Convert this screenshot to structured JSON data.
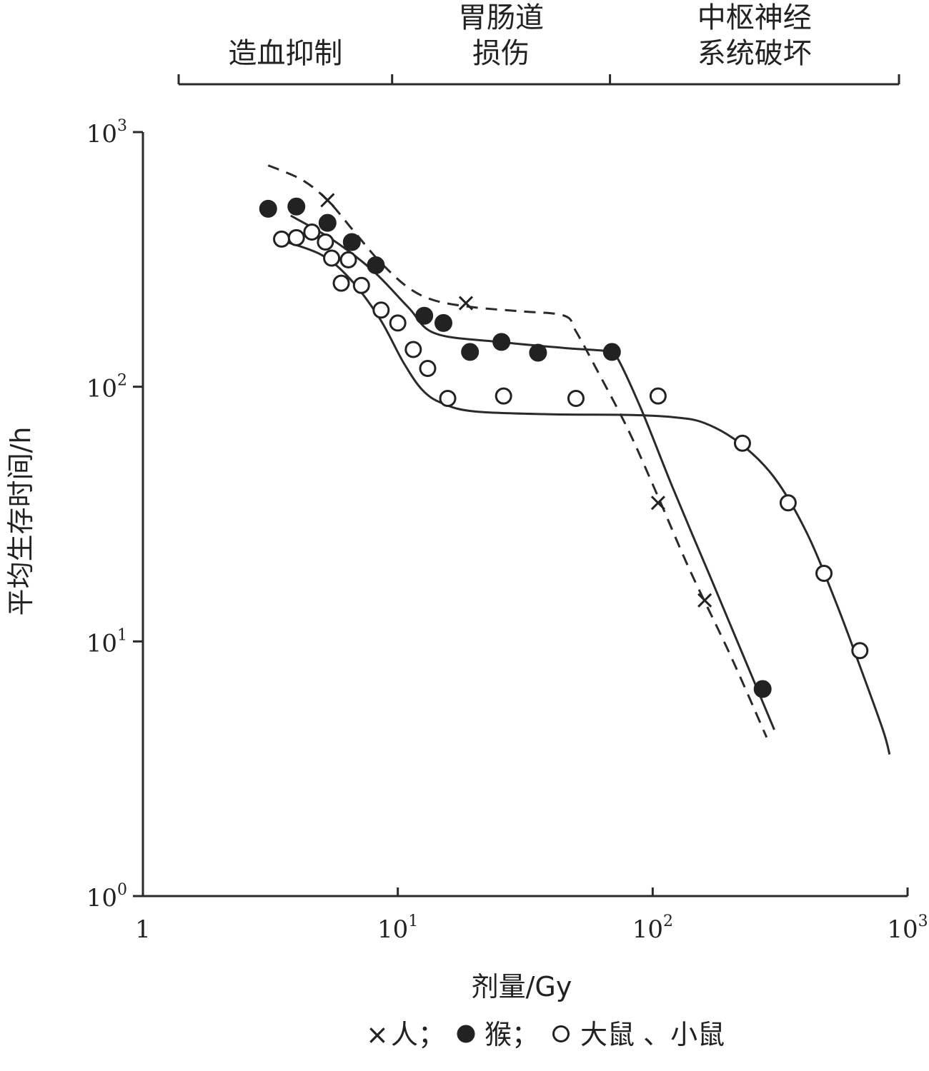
{
  "chart_data": {
    "type": "scatter",
    "xscale": "log",
    "yscale": "log",
    "xlim": [
      1,
      1000
    ],
    "ylim": [
      1,
      1000
    ],
    "xlabel": "剂量/Gy",
    "ylabel": "平均生存时间/h",
    "x_ticks": [
      {
        "base": "1",
        "exp": ""
      },
      {
        "base": "10",
        "exp": "1"
      },
      {
        "base": "10",
        "exp": "2"
      },
      {
        "base": "10",
        "exp": "3"
      }
    ],
    "y_ticks": [
      {
        "base": "10",
        "exp": "0"
      },
      {
        "base": "10",
        "exp": "1"
      },
      {
        "base": "10",
        "exp": "2"
      },
      {
        "base": "10",
        "exp": "3"
      }
    ],
    "phases": [
      {
        "lines": [
          "造血抑制"
        ],
        "range": [
          1.4,
          9.5
        ]
      },
      {
        "lines": [
          "胃肠道",
          "损伤"
        ],
        "range": [
          9.5,
          68
        ]
      },
      {
        "lines": [
          "中枢神经",
          "系统破坏"
        ],
        "range": [
          68,
          1000
        ]
      }
    ],
    "legend": {
      "human": "人；",
      "monkey": "猴；",
      "rodent": "大鼠 、小鼠",
      "human_symbol": "×"
    },
    "series": [
      {
        "key": "human",
        "marker": "x",
        "curve_style": "dashed",
        "points": [
          [
            5.3,
            540
          ],
          [
            18.5,
            213
          ],
          [
            105,
            35
          ],
          [
            160,
            14.5
          ]
        ],
        "curve": [
          [
            3.1,
            740
          ],
          [
            4.2,
            650
          ],
          [
            5.3,
            540
          ],
          [
            6.7,
            410
          ],
          [
            8.5,
            310
          ],
          [
            11,
            245
          ],
          [
            14,
            218
          ],
          [
            20,
            205
          ],
          [
            30,
            198
          ],
          [
            45,
            190
          ],
          [
            50,
            165
          ],
          [
            60,
            118
          ],
          [
            80,
            68
          ],
          [
            105,
            37
          ],
          [
            140,
            19
          ],
          [
            200,
            9
          ],
          [
            280,
            4.2
          ]
        ]
      },
      {
        "key": "monkey",
        "marker": "filled",
        "curve_style": "solid",
        "points": [
          [
            3.1,
            500
          ],
          [
            4.0,
            510
          ],
          [
            5.3,
            440
          ],
          [
            6.6,
            370
          ],
          [
            8.2,
            300
          ],
          [
            12.7,
            190
          ],
          [
            15.1,
            178
          ],
          [
            19.2,
            137
          ],
          [
            25.5,
            150
          ],
          [
            35.5,
            136
          ],
          [
            69.2,
            137
          ],
          [
            270,
            6.5
          ]
        ],
        "curve": [
          [
            3.8,
            470
          ],
          [
            5.5,
            380
          ],
          [
            8,
            285
          ],
          [
            11,
            205
          ],
          [
            14,
            162
          ],
          [
            25,
            150
          ],
          [
            45,
            142
          ],
          [
            66,
            138
          ],
          [
            72,
            132
          ],
          [
            90,
            82
          ],
          [
            120,
            40
          ],
          [
            170,
            17.5
          ],
          [
            230,
            8.5
          ],
          [
            300,
            4.5
          ]
        ]
      },
      {
        "key": "rodent",
        "marker": "hollow",
        "curve_style": "solid",
        "points": [
          [
            3.5,
            380
          ],
          [
            4.0,
            385
          ],
          [
            4.6,
            405
          ],
          [
            5.2,
            370
          ],
          [
            5.5,
            320
          ],
          [
            6.4,
            315
          ],
          [
            6.0,
            255
          ],
          [
            7.2,
            250
          ],
          [
            8.6,
            200
          ],
          [
            10.0,
            178
          ],
          [
            11.5,
            140
          ],
          [
            13.1,
            118
          ],
          [
            15.7,
            90
          ],
          [
            26,
            92
          ],
          [
            50,
            90
          ],
          [
            105,
            92
          ],
          [
            225,
            60
          ],
          [
            340,
            35
          ],
          [
            470,
            18.5
          ],
          [
            650,
            9.2
          ]
        ],
        "curve": [
          [
            3.5,
            375
          ],
          [
            5,
            330
          ],
          [
            6.5,
            265
          ],
          [
            8.5,
            185
          ],
          [
            10.5,
            125
          ],
          [
            12.5,
            97
          ],
          [
            15,
            86
          ],
          [
            20,
            80
          ],
          [
            40,
            78
          ],
          [
            80,
            77.5
          ],
          [
            120,
            76
          ],
          [
            160,
            72
          ],
          [
            220,
            60
          ],
          [
            300,
            44
          ],
          [
            400,
            27
          ],
          [
            520,
            14.5
          ],
          [
            650,
            8
          ],
          [
            800,
            4.5
          ],
          [
            850,
            3.6
          ]
        ]
      }
    ]
  }
}
